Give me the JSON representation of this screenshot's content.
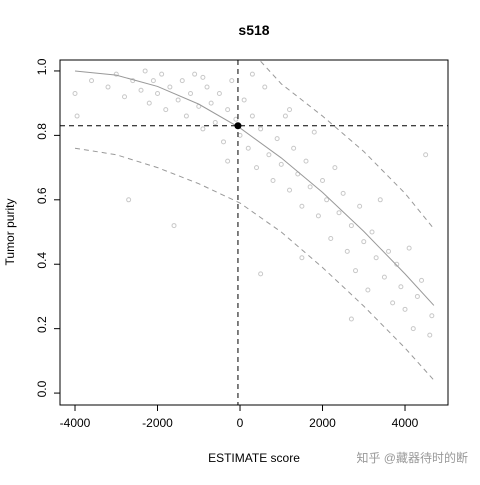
{
  "chart_data": {
    "type": "scatter",
    "title": "s518",
    "x_label": "ESTIMATE score",
    "y_label": "Tumor purity",
    "watermark": "知乎 @藏器待时的断",
    "xlim": [
      -4364,
      5042
    ],
    "ylim": [
      -0.037,
      1.034
    ],
    "xticks": [
      -4000,
      -2000,
      0,
      2000,
      4000
    ],
    "yticks": [
      {
        "value": 0,
        "label": "0.0"
      },
      0.2,
      0.4,
      0.6,
      0.8,
      {
        "value": 1,
        "label": "1.0"
      }
    ],
    "points": {
      "color": "#c8c8c8",
      "x": [
        -4000,
        -3950,
        -3600,
        -3200,
        -3000,
        -2800,
        -2700,
        -2600,
        -2400,
        -2300,
        -2200,
        -2100,
        -2000,
        -1900,
        -1800,
        -1700,
        -1600,
        -1500,
        -1400,
        -1300,
        -1200,
        -1100,
        -1000,
        -900,
        -800,
        -700,
        -600,
        -500,
        -400,
        -300,
        -200,
        -100,
        0,
        100,
        200,
        300,
        400,
        500,
        600,
        700,
        800,
        900,
        1000,
        1100,
        1200,
        1300,
        1400,
        1500,
        1600,
        1700,
        1800,
        1900,
        2000,
        2100,
        2200,
        2300,
        2400,
        2500,
        2600,
        2700,
        2800,
        2900,
        3000,
        3100,
        3200,
        3300,
        3400,
        3500,
        3600,
        3700,
        3800,
        3900,
        4000,
        4100,
        4200,
        4300,
        4400,
        4500,
        4600,
        4650,
        -300,
        500,
        1200,
        2700,
        -900,
        300,
        1500
      ],
      "y": [
        0.93,
        0.86,
        0.97,
        0.95,
        0.99,
        0.92,
        0.6,
        0.97,
        0.94,
        1.0,
        0.9,
        0.97,
        0.93,
        0.99,
        0.88,
        0.95,
        0.52,
        0.91,
        0.97,
        0.86,
        0.93,
        0.99,
        0.89,
        0.82,
        0.95,
        0.9,
        0.84,
        0.93,
        0.78,
        0.88,
        0.97,
        0.85,
        0.8,
        0.91,
        0.76,
        0.86,
        0.7,
        0.82,
        0.95,
        0.74,
        0.66,
        0.79,
        0.71,
        0.86,
        0.63,
        0.76,
        0.68,
        0.58,
        0.72,
        0.64,
        0.81,
        0.55,
        0.66,
        0.6,
        0.48,
        0.7,
        0.56,
        0.62,
        0.44,
        0.52,
        0.38,
        0.58,
        0.47,
        0.32,
        0.5,
        0.42,
        0.6,
        0.36,
        0.44,
        0.28,
        0.4,
        0.33,
        0.26,
        0.45,
        0.2,
        0.3,
        0.35,
        0.74,
        0.18,
        0.24,
        0.72,
        0.37,
        0.88,
        0.23,
        0.98,
        0.99,
        0.42
      ]
    },
    "lines": [
      {
        "style": "solid",
        "color": "#999999",
        "x": [
          -4000,
          -3000,
          -2000,
          -1000,
          0,
          1000,
          2000,
          3000,
          4000,
          4700
        ],
        "y": [
          1.0,
          0.987,
          0.952,
          0.897,
          0.823,
          0.73,
          0.623,
          0.502,
          0.37,
          0.272
        ]
      },
      {
        "style": "dashed",
        "color": "#999999",
        "x": [
          -4000,
          -3000,
          -2000,
          -1000,
          0,
          1000,
          2000,
          3000,
          4000,
          4700
        ],
        "y": [
          0.76,
          0.74,
          0.7,
          0.65,
          0.59,
          0.5,
          0.39,
          0.27,
          0.14,
          0.04
        ]
      },
      {
        "style": "dashed",
        "color": "#999999",
        "x": [
          500,
          1000,
          2000,
          3000,
          4000,
          4700
        ],
        "y": [
          1.03,
          0.96,
          0.86,
          0.75,
          0.62,
          0.51
        ]
      }
    ],
    "highlight": {
      "x": -50,
      "y": 0.83,
      "color": "#000000"
    }
  }
}
